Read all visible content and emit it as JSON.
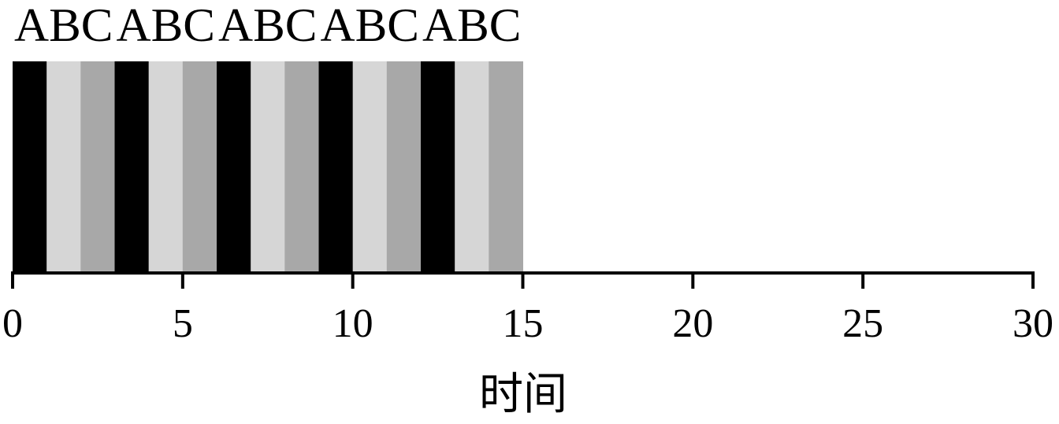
{
  "chart_data": {
    "type": "bar",
    "title": "",
    "xlabel": "时间",
    "ylabel": "",
    "xlim": [
      0,
      30
    ],
    "xticks": [
      0,
      5,
      10,
      15,
      20,
      25,
      30
    ],
    "xtick_labels": [
      "0",
      "5",
      "10",
      "15",
      "20",
      "25",
      "30"
    ],
    "grid": false,
    "legend": "none",
    "segment_duration": 1,
    "sequence": [
      "A",
      "B",
      "C",
      "A",
      "B",
      "C",
      "A",
      "B",
      "C",
      "A",
      "B",
      "C",
      "A",
      "B",
      "C"
    ],
    "segments": [
      {
        "label": "A",
        "start": 0,
        "end": 1
      },
      {
        "label": "B",
        "start": 1,
        "end": 2
      },
      {
        "label": "C",
        "start": 2,
        "end": 3
      },
      {
        "label": "A",
        "start": 3,
        "end": 4
      },
      {
        "label": "B",
        "start": 4,
        "end": 5
      },
      {
        "label": "C",
        "start": 5,
        "end": 6
      },
      {
        "label": "A",
        "start": 6,
        "end": 7
      },
      {
        "label": "B",
        "start": 7,
        "end": 8
      },
      {
        "label": "C",
        "start": 8,
        "end": 9
      },
      {
        "label": "A",
        "start": 9,
        "end": 10
      },
      {
        "label": "B",
        "start": 10,
        "end": 11
      },
      {
        "label": "C",
        "start": 11,
        "end": 12
      },
      {
        "label": "A",
        "start": 12,
        "end": 13
      },
      {
        "label": "B",
        "start": 13,
        "end": 14
      },
      {
        "label": "C",
        "start": 14,
        "end": 15
      }
    ],
    "cycle_labels": [
      "ABC",
      "ABC",
      "ABC",
      "ABC",
      "ABC"
    ],
    "colors": {
      "A": "#000000",
      "B": "#d6d6d6",
      "C": "#a8a8a8"
    }
  }
}
